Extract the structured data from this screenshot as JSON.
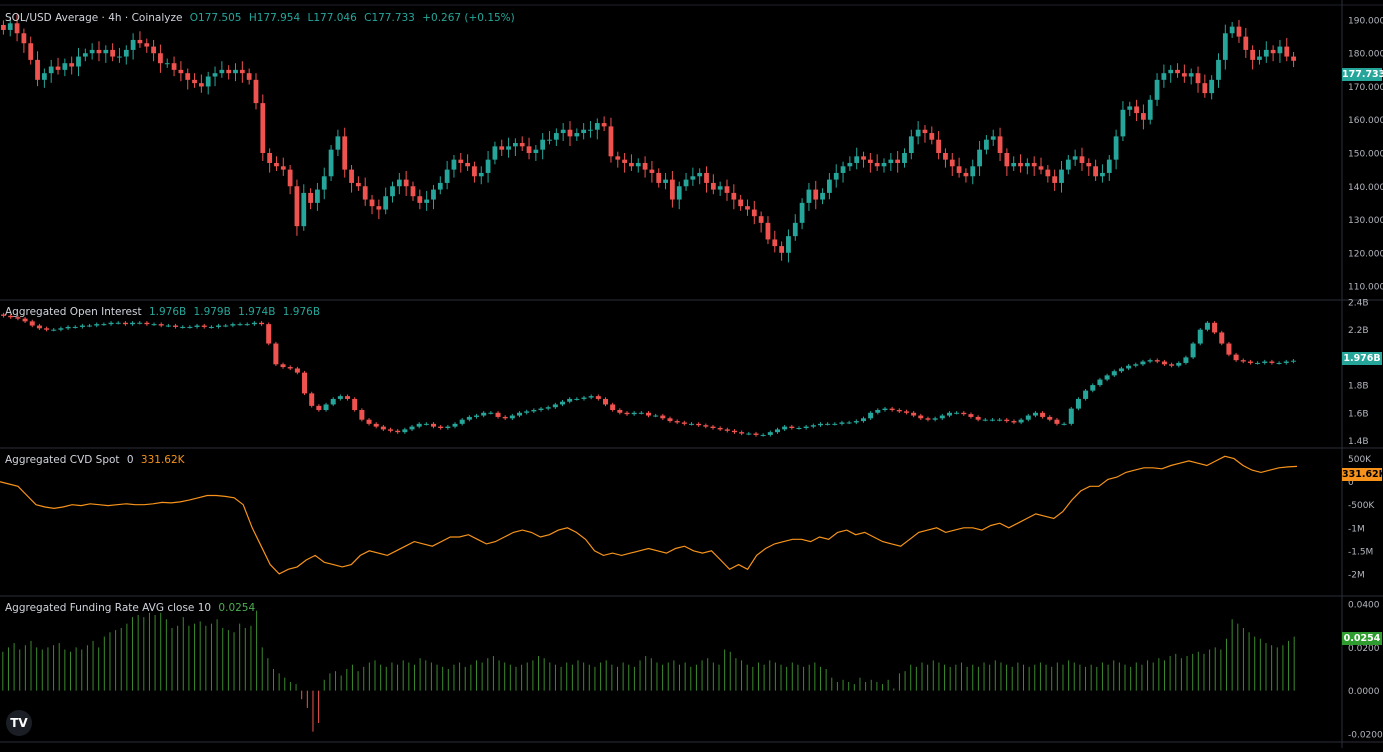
{
  "header": {
    "title": "SOL/USD Average · 4h · Coinalyze",
    "open": "O177.505",
    "high": "H177.954",
    "low": "L177.046",
    "close": "C177.733",
    "change": "+0.267 (+0.15%)"
  },
  "colors": {
    "up": "#26a69a",
    "down": "#ef5350",
    "cvd": "#f7931a",
    "funding": "#3c8a2e",
    "funding_tag": "#2e9c2e",
    "grid": "#2a2e39"
  },
  "icons": {
    "logo": "tradingview-logo-icon"
  },
  "logo_text": "TV",
  "chart_data": [
    {
      "type": "candlestick",
      "title": "SOL/USD Average · 4h · Coinalyze",
      "y_ticks": [
        "190.000",
        "180.000",
        "170.000",
        "160.000",
        "150.000",
        "140.000",
        "130.000",
        "120.000",
        "110.000"
      ],
      "ylim": [
        107,
        193
      ],
      "last_value_label": "177.733",
      "closes": [
        187,
        189,
        186,
        183,
        178,
        172,
        174,
        176,
        175,
        177,
        176,
        179,
        180,
        181,
        180,
        181,
        179,
        179,
        181,
        184,
        183,
        182,
        180,
        177,
        177,
        175,
        174,
        172,
        171,
        170,
        173,
        174,
        175,
        174,
        175,
        174,
        172,
        165,
        150,
        147,
        146,
        145,
        140,
        128,
        138,
        135,
        139,
        143,
        151,
        155,
        145,
        141,
        140,
        136,
        134,
        133,
        137,
        140,
        142,
        140,
        137,
        135,
        136,
        139,
        141,
        145,
        148,
        147,
        146,
        143,
        144,
        148,
        152,
        151,
        152,
        153,
        152,
        150,
        151,
        154,
        154,
        156,
        157,
        155,
        156,
        157,
        157,
        159,
        158,
        149,
        148,
        147,
        146,
        147,
        145,
        144,
        141,
        142,
        136,
        140,
        142,
        143,
        144,
        141,
        139,
        140,
        138,
        136,
        134,
        133,
        131,
        129,
        124,
        122,
        120,
        125,
        129,
        135,
        139,
        136,
        138,
        142,
        144,
        146,
        147,
        149,
        148,
        147,
        146,
        147,
        148,
        147,
        150,
        155,
        157,
        156,
        154,
        150,
        148,
        146,
        144,
        143,
        146,
        151,
        154,
        155,
        150,
        146,
        147,
        146,
        147,
        146,
        145,
        143,
        141,
        145,
        148,
        149,
        147,
        146,
        143,
        144,
        148,
        155,
        163,
        164,
        162,
        160,
        166,
        172,
        174,
        175,
        174,
        173,
        174,
        171,
        168,
        172,
        178,
        186,
        188,
        185,
        181,
        178,
        179,
        181,
        180,
        182,
        179,
        177.733
      ],
      "close": 177.733
    },
    {
      "type": "candlestick",
      "title": "Aggregated Open Interest",
      "values_shown": [
        "1.976B",
        "1.979B",
        "1.974B",
        "1.976B"
      ],
      "y_ticks": [
        "2.4B",
        "2.2B",
        "2.0B",
        "1.8B",
        "1.6B",
        "1.4B"
      ],
      "ylim": [
        1.36,
        2.4
      ],
      "last_value_label": "1.976B",
      "closes_b": [
        2.3,
        2.29,
        2.28,
        2.26,
        2.23,
        2.21,
        2.2,
        2.2,
        2.21,
        2.22,
        2.22,
        2.23,
        2.23,
        2.24,
        2.24,
        2.25,
        2.25,
        2.24,
        2.25,
        2.25,
        2.24,
        2.24,
        2.23,
        2.23,
        2.22,
        2.22,
        2.22,
        2.23,
        2.22,
        2.22,
        2.23,
        2.23,
        2.24,
        2.24,
        2.24,
        2.25,
        2.24,
        2.1,
        1.95,
        1.93,
        1.92,
        1.89,
        1.74,
        1.65,
        1.62,
        1.66,
        1.7,
        1.72,
        1.7,
        1.62,
        1.55,
        1.52,
        1.5,
        1.48,
        1.47,
        1.46,
        1.48,
        1.5,
        1.52,
        1.52,
        1.5,
        1.49,
        1.5,
        1.52,
        1.55,
        1.57,
        1.58,
        1.6,
        1.6,
        1.57,
        1.56,
        1.58,
        1.6,
        1.61,
        1.62,
        1.63,
        1.64,
        1.66,
        1.68,
        1.7,
        1.7,
        1.71,
        1.72,
        1.7,
        1.66,
        1.62,
        1.6,
        1.59,
        1.6,
        1.6,
        1.58,
        1.58,
        1.56,
        1.54,
        1.53,
        1.52,
        1.52,
        1.51,
        1.5,
        1.49,
        1.48,
        1.47,
        1.46,
        1.45,
        1.45,
        1.44,
        1.44,
        1.46,
        1.48,
        1.5,
        1.49,
        1.49,
        1.5,
        1.51,
        1.52,
        1.52,
        1.52,
        1.53,
        1.53,
        1.54,
        1.56,
        1.6,
        1.62,
        1.63,
        1.62,
        1.61,
        1.6,
        1.58,
        1.56,
        1.55,
        1.56,
        1.58,
        1.6,
        1.6,
        1.59,
        1.57,
        1.55,
        1.55,
        1.55,
        1.55,
        1.54,
        1.53,
        1.55,
        1.58,
        1.6,
        1.57,
        1.55,
        1.52,
        1.52,
        1.63,
        1.7,
        1.76,
        1.8,
        1.84,
        1.87,
        1.9,
        1.92,
        1.94,
        1.95,
        1.97,
        1.98,
        1.97,
        1.95,
        1.94,
        1.96,
        2.0,
        2.1,
        2.2,
        2.25,
        2.18,
        2.1,
        2.02,
        1.98,
        1.97,
        1.96,
        1.96,
        1.97,
        1.96,
        1.96,
        1.97,
        1.976
      ],
      "close": 1.976
    },
    {
      "type": "line",
      "title": "Aggregated CVD Spot",
      "param": "0",
      "value_label": "331.62K",
      "y_ticks": [
        "500K",
        "0",
        "-500K",
        "-1M",
        "-1.5M",
        "-2M"
      ],
      "ylim": [
        -2.35,
        0.6
      ],
      "values_m": [
        0.0,
        -0.05,
        -0.1,
        -0.3,
        -0.5,
        -0.55,
        -0.58,
        -0.55,
        -0.5,
        -0.52,
        -0.48,
        -0.5,
        -0.52,
        -0.5,
        -0.48,
        -0.5,
        -0.5,
        -0.48,
        -0.45,
        -0.46,
        -0.44,
        -0.4,
        -0.35,
        -0.3,
        -0.3,
        -0.32,
        -0.35,
        -0.5,
        -1.0,
        -1.4,
        -1.8,
        -2.0,
        -1.9,
        -1.85,
        -1.7,
        -1.6,
        -1.75,
        -1.8,
        -1.85,
        -1.8,
        -1.6,
        -1.5,
        -1.55,
        -1.6,
        -1.5,
        -1.4,
        -1.3,
        -1.35,
        -1.4,
        -1.3,
        -1.2,
        -1.2,
        -1.15,
        -1.25,
        -1.35,
        -1.3,
        -1.2,
        -1.1,
        -1.05,
        -1.1,
        -1.2,
        -1.15,
        -1.05,
        -1.0,
        -1.1,
        -1.25,
        -1.5,
        -1.6,
        -1.55,
        -1.6,
        -1.55,
        -1.5,
        -1.45,
        -1.5,
        -1.55,
        -1.45,
        -1.4,
        -1.5,
        -1.55,
        -1.5,
        -1.7,
        -1.9,
        -1.8,
        -1.9,
        -1.6,
        -1.45,
        -1.35,
        -1.3,
        -1.25,
        -1.25,
        -1.3,
        -1.2,
        -1.25,
        -1.1,
        -1.05,
        -1.15,
        -1.1,
        -1.2,
        -1.3,
        -1.35,
        -1.4,
        -1.25,
        -1.1,
        -1.05,
        -1.0,
        -1.1,
        -1.05,
        -1.0,
        -1.0,
        -1.05,
        -0.95,
        -0.9,
        -1.0,
        -0.9,
        -0.8,
        -0.7,
        -0.75,
        -0.8,
        -0.65,
        -0.4,
        -0.2,
        -0.1,
        -0.1,
        0.05,
        0.1,
        0.2,
        0.25,
        0.3,
        0.3,
        0.28,
        0.35,
        0.4,
        0.45,
        0.4,
        0.35,
        0.45,
        0.55,
        0.5,
        0.35,
        0.25,
        0.2,
        0.25,
        0.3,
        0.32,
        0.33
      ],
      "close": 331.62
    },
    {
      "type": "bar",
      "title": "Aggregated Funding Rate AVG close 10",
      "value_label": "0.0254",
      "y_ticks": [
        "0.0400",
        "0.0200",
        "0.0000",
        "-0.0200"
      ],
      "ylim": [
        -0.021,
        0.041
      ],
      "values": [
        0.018,
        0.02,
        0.022,
        0.019,
        0.021,
        0.023,
        0.02,
        0.019,
        0.02,
        0.021,
        0.022,
        0.019,
        0.018,
        0.02,
        0.019,
        0.021,
        0.023,
        0.02,
        0.025,
        0.027,
        0.028,
        0.029,
        0.031,
        0.034,
        0.035,
        0.034,
        0.036,
        0.035,
        0.036,
        0.033,
        0.029,
        0.03,
        0.034,
        0.03,
        0.031,
        0.032,
        0.03,
        0.031,
        0.033,
        0.029,
        0.028,
        0.027,
        0.031,
        0.029,
        0.03,
        0.037,
        0.02,
        0.015,
        0.01,
        0.008,
        0.006,
        0.004,
        0.003,
        -0.004,
        -0.008,
        -0.019,
        -0.015,
        0.005,
        0.008,
        0.009,
        0.007,
        0.01,
        0.012,
        0.009,
        0.011,
        0.013,
        0.014,
        0.012,
        0.011,
        0.013,
        0.012,
        0.014,
        0.013,
        0.012,
        0.015,
        0.014,
        0.013,
        0.012,
        0.011,
        0.01,
        0.012,
        0.013,
        0.011,
        0.012,
        0.014,
        0.013,
        0.015,
        0.016,
        0.014,
        0.013,
        0.012,
        0.011,
        0.012,
        0.013,
        0.014,
        0.016,
        0.015,
        0.013,
        0.012,
        0.011,
        0.013,
        0.012,
        0.014,
        0.013,
        0.012,
        0.011,
        0.013,
        0.014,
        0.012,
        0.011,
        0.013,
        0.012,
        0.011,
        0.014,
        0.016,
        0.015,
        0.013,
        0.012,
        0.013,
        0.014,
        0.012,
        0.013,
        0.011,
        0.012,
        0.014,
        0.015,
        0.013,
        0.012,
        0.019,
        0.018,
        0.015,
        0.014,
        0.012,
        0.011,
        0.013,
        0.012,
        0.014,
        0.013,
        0.012,
        0.011,
        0.013,
        0.012,
        0.011,
        0.012,
        0.013,
        0.011,
        0.01,
        0.006,
        0.004,
        0.005,
        0.004,
        0.003,
        0.006,
        0.004,
        0.005,
        0.004,
        0.003,
        0.005,
        0.001,
        0.008,
        0.009,
        0.012,
        0.011,
        0.013,
        0.012,
        0.014,
        0.013,
        0.012,
        0.011,
        0.012,
        0.013,
        0.011,
        0.012,
        0.011,
        0.013,
        0.012,
        0.014,
        0.013,
        0.012,
        0.011,
        0.013,
        0.012,
        0.011,
        0.012,
        0.013,
        0.012,
        0.011,
        0.013,
        0.012,
        0.014,
        0.013,
        0.012,
        0.011,
        0.012,
        0.011,
        0.013,
        0.012,
        0.014,
        0.013,
        0.012,
        0.011,
        0.013,
        0.012,
        0.014,
        0.013,
        0.015,
        0.014,
        0.016,
        0.017,
        0.015,
        0.016,
        0.017,
        0.018,
        0.017,
        0.019,
        0.02,
        0.019,
        0.024,
        0.033,
        0.031,
        0.029,
        0.027,
        0.025,
        0.024,
        0.022,
        0.021,
        0.02,
        0.021,
        0.023,
        0.025
      ],
      "close": 0.0254
    }
  ]
}
